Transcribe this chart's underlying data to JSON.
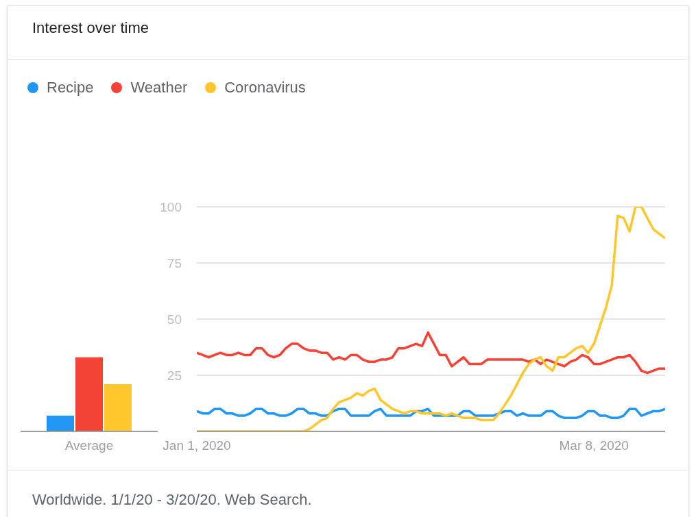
{
  "chart_data": [
    {
      "type": "bar",
      "title": "Interest over time",
      "categories": [
        "Average"
      ],
      "series": [
        {
          "color": "#2196f3",
          "values": [
            7
          ]
        },
        {
          "color": "#f44336",
          "values": [
            33
          ]
        },
        {
          "color": "#ffc72c",
          "values": [
            21
          ]
        }
      ],
      "ylim": [
        0,
        100
      ],
      "tick_labels": "x"
    },
    {
      "type": "line",
      "annotations": [
        "Worldwide. 1/1/20 - 3/20/20. Web Search."
      ],
      "legend": "top left",
      "grid": "y",
      "x": [
        "2020-01-01",
        "2020-01-02",
        "2020-01-03",
        "2020-01-04",
        "2020-01-05",
        "2020-01-06",
        "2020-01-07",
        "2020-01-08",
        "2020-01-09",
        "2020-01-10",
        "2020-01-11",
        "2020-01-12",
        "2020-01-13",
        "2020-01-14",
        "2020-01-15",
        "2020-01-16",
        "2020-01-17",
        "2020-01-18",
        "2020-01-19",
        "2020-01-20",
        "2020-01-21",
        "2020-01-22",
        "2020-01-23",
        "2020-01-24",
        "2020-01-25",
        "2020-01-26",
        "2020-01-27",
        "2020-01-28",
        "2020-01-29",
        "2020-01-30",
        "2020-01-31",
        "2020-02-01",
        "2020-02-02",
        "2020-02-03",
        "2020-02-04",
        "2020-02-05",
        "2020-02-06",
        "2020-02-07",
        "2020-02-08",
        "2020-02-09",
        "2020-02-10",
        "2020-02-11",
        "2020-02-12",
        "2020-02-13",
        "2020-02-14",
        "2020-02-15",
        "2020-02-16",
        "2020-02-17",
        "2020-02-18",
        "2020-02-19",
        "2020-02-20",
        "2020-02-21",
        "2020-02-22",
        "2020-02-23",
        "2020-02-24",
        "2020-02-25",
        "2020-02-26",
        "2020-02-27",
        "2020-02-28",
        "2020-02-29",
        "2020-03-01",
        "2020-03-02",
        "2020-03-03",
        "2020-03-04",
        "2020-03-05",
        "2020-03-06",
        "2020-03-07",
        "2020-03-08",
        "2020-03-09",
        "2020-03-10",
        "2020-03-11",
        "2020-03-12",
        "2020-03-13",
        "2020-03-14",
        "2020-03-15",
        "2020-03-16",
        "2020-03-17",
        "2020-03-18",
        "2020-03-19",
        "2020-03-20"
      ],
      "series": [
        {
          "name": "Recipe",
          "color": "#2196f3",
          "values": [
            9,
            8,
            8,
            10,
            10,
            8,
            8,
            7,
            7,
            8,
            10,
            10,
            8,
            8,
            7,
            7,
            8,
            10,
            10,
            8,
            8,
            7,
            7,
            9,
            10,
            10,
            7,
            7,
            7,
            7,
            9,
            10,
            7,
            7,
            7,
            7,
            7,
            9,
            9,
            10,
            7,
            7,
            7,
            7,
            7,
            9,
            9,
            7,
            7,
            7,
            7,
            8,
            9,
            9,
            7,
            8,
            7,
            7,
            7,
            9,
            9,
            7,
            6,
            6,
            6,
            7,
            9,
            9,
            7,
            7,
            6,
            6,
            7,
            10,
            10,
            7,
            8,
            9,
            9,
            10
          ]
        },
        {
          "name": "Weather",
          "color": "#f44336",
          "values": [
            35,
            34,
            33,
            34,
            35,
            34,
            34,
            35,
            34,
            34,
            37,
            37,
            34,
            33,
            34,
            37,
            39,
            39,
            37,
            36,
            36,
            35,
            35,
            32,
            33,
            32,
            34,
            34,
            32,
            31,
            31,
            32,
            32,
            33,
            37,
            37,
            38,
            39,
            38,
            44,
            39,
            34,
            34,
            29,
            31,
            33,
            30,
            30,
            30,
            32,
            32,
            32,
            32,
            32,
            32,
            32,
            31,
            32,
            30,
            32,
            31,
            30,
            29,
            31,
            32,
            34,
            33,
            30,
            30,
            31,
            32,
            33,
            33,
            34,
            31,
            27,
            26,
            27,
            28,
            28
          ]
        },
        {
          "name": "Coronavirus",
          "color": "#ffc72c",
          "values": [
            0,
            0,
            0,
            0,
            0,
            0,
            0,
            0,
            0,
            0,
            0,
            0,
            0,
            0,
            0,
            0,
            0,
            0,
            0,
            1,
            3,
            5,
            6,
            10,
            13,
            14,
            15,
            17,
            16,
            18,
            19,
            14,
            12,
            10,
            9,
            8,
            9,
            9,
            8,
            8,
            8,
            8,
            7,
            8,
            7,
            6,
            6,
            6,
            5,
            5,
            5,
            8,
            12,
            16,
            21,
            26,
            30,
            32,
            33,
            29,
            27,
            33,
            33,
            35,
            37,
            38,
            35,
            39,
            47,
            55,
            65,
            96,
            95,
            89,
            100,
            100,
            95,
            90,
            88,
            86
          ]
        }
      ],
      "xlim": [
        "2020-01-01",
        "2020-03-20"
      ],
      "xticks": [
        {
          "value": "2020-01-01",
          "label": "Jan 1, 2020"
        },
        {
          "value": "2020-03-08",
          "label": "Mar 8, 2020"
        }
      ],
      "ylim": [
        0,
        100
      ],
      "yticks": [
        {
          "value": 0,
          "label": null
        },
        25,
        50,
        75,
        100
      ]
    }
  ]
}
